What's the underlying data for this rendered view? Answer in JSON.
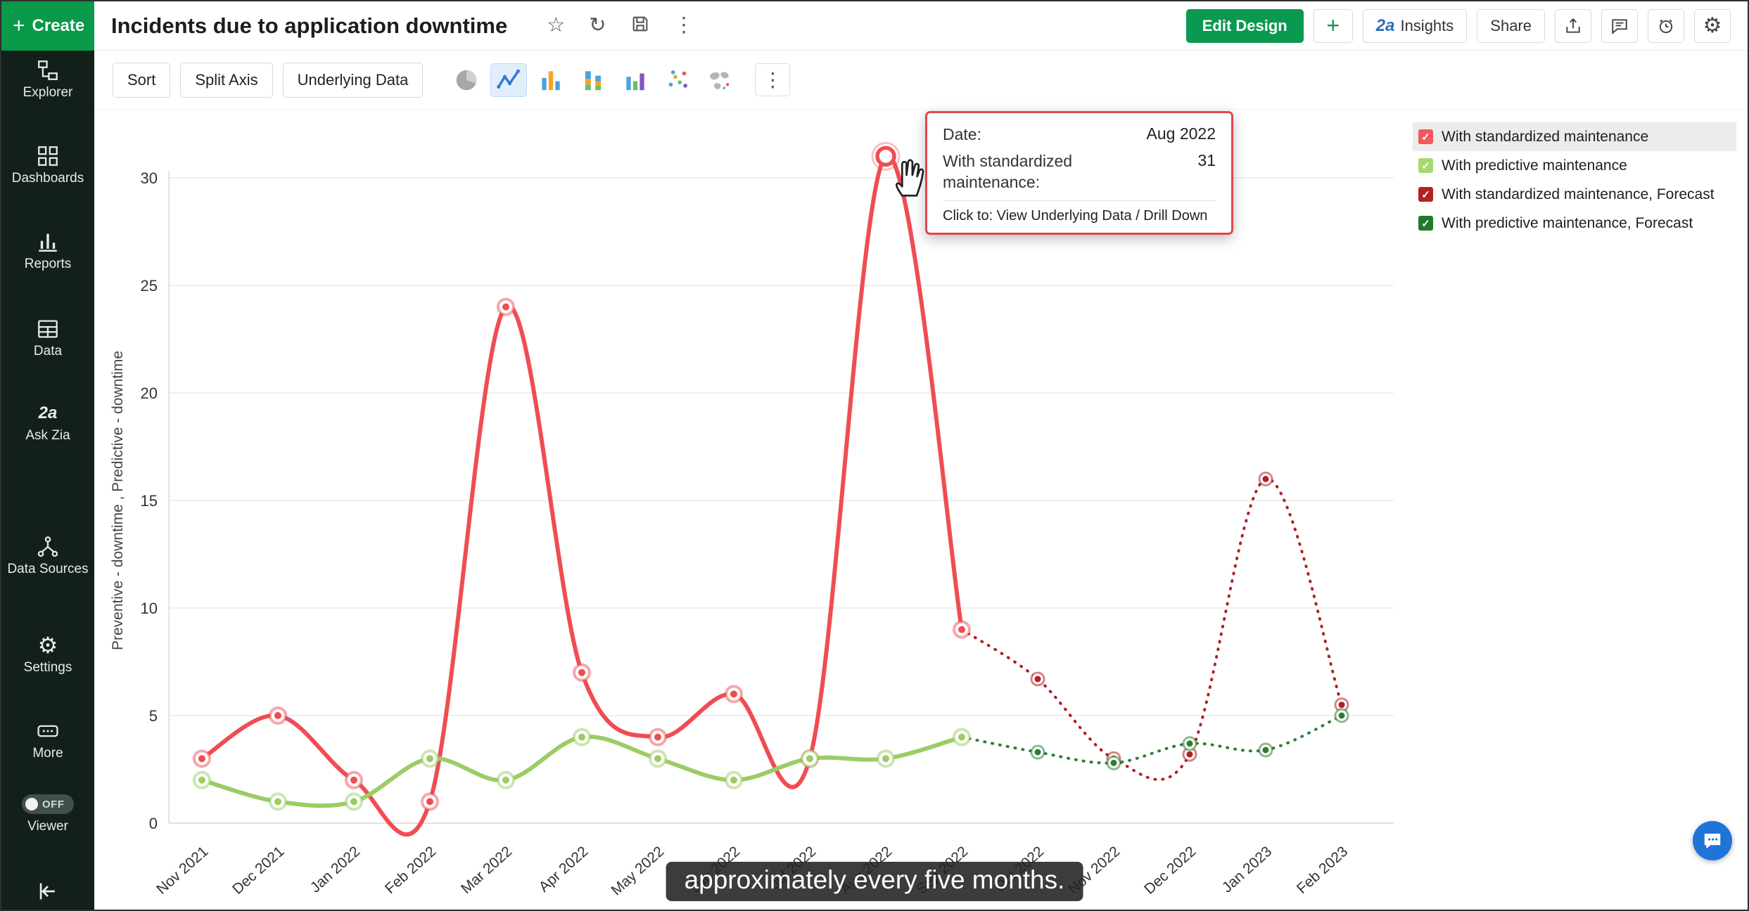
{
  "icons": {
    "plus": "+",
    "star": "☆",
    "refresh": "↻",
    "kebab": "⋮",
    "gear": "⚙",
    "check": "✓",
    "zia": "2a"
  },
  "sidebar": {
    "create_label": "Create",
    "items": [
      {
        "label": "Explorer"
      },
      {
        "label": "Dashboards"
      },
      {
        "label": "Reports"
      },
      {
        "label": "Data"
      },
      {
        "label": "Ask Zia"
      },
      {
        "label": "Data Sources"
      },
      {
        "label": "Settings"
      },
      {
        "label": "More"
      }
    ],
    "viewer": {
      "label": "Viewer",
      "toggle": "OFF"
    }
  },
  "header": {
    "title": "Incidents due to application downtime",
    "edit_design_label": "Edit Design",
    "insights_label": "Insights",
    "share_label": "Share"
  },
  "toolbar": {
    "sort_label": "Sort",
    "split_axis_label": "Split Axis",
    "underlying_data_label": "Underlying Data"
  },
  "chart_data": {
    "type": "line",
    "title": "Incidents due to application downtime",
    "ylabel": "Preventive - downtime , Predictive - downtime",
    "ylim": [
      0,
      30
    ],
    "yticks": [
      0,
      5,
      10,
      15,
      20,
      25,
      30
    ],
    "grid": true,
    "legend_position": "top-right",
    "categories": [
      "Nov 2021",
      "Dec 2021",
      "Jan 2022",
      "Feb 2022",
      "Mar 2022",
      "Apr 2022",
      "May 2022",
      "Jun 2022",
      "Jul 2022",
      "Aug 2022",
      "Sep 2022",
      "Oct 2022",
      "Nov 2022",
      "Dec 2022",
      "Jan 2023",
      "Feb 2023"
    ],
    "series": [
      {
        "name": "With standardized maintenance",
        "color": "#ef4d52",
        "style": "solid",
        "values": [
          3,
          5,
          2,
          1,
          24,
          7,
          4,
          6,
          3,
          31,
          9,
          null,
          null,
          null,
          null,
          null
        ]
      },
      {
        "name": "With predictive maintenance",
        "color": "#9ccc65",
        "style": "solid",
        "values": [
          2,
          1,
          1,
          3,
          2,
          4,
          3,
          2,
          3,
          3,
          4,
          null,
          null,
          null,
          null,
          null
        ]
      },
      {
        "name": "With standardized maintenance, Forecast",
        "color": "#b21f24",
        "style": "dashed",
        "values": [
          null,
          null,
          null,
          null,
          null,
          null,
          null,
          null,
          null,
          null,
          9,
          6.7,
          3,
          3.2,
          16,
          5.5
        ]
      },
      {
        "name": "With predictive maintenance, Forecast",
        "color": "#2e7d32",
        "style": "dashed",
        "values": [
          null,
          null,
          null,
          null,
          null,
          null,
          null,
          null,
          null,
          null,
          4,
          3.3,
          2.8,
          3.7,
          3.4,
          5
        ]
      }
    ],
    "highlight": {
      "category": "Aug 2022",
      "series": "With standardized maintenance",
      "value": 31
    }
  },
  "legend": {
    "items": [
      {
        "label": "With standardized maintenance",
        "color": "#f1595f",
        "selected": true
      },
      {
        "label": "With predictive maintenance",
        "color": "#a5d96d",
        "selected": false
      },
      {
        "label": "With standardized maintenance, Forecast",
        "color": "#b22222",
        "selected": false
      },
      {
        "label": "With predictive maintenance, Forecast",
        "color": "#217a2b",
        "selected": false
      }
    ]
  },
  "tooltip": {
    "date_label": "Date:",
    "date_value": "Aug 2022",
    "series_label": "With standardized maintenance:",
    "series_value": "31",
    "footer": "Click to: View Underlying Data / Drill Down"
  },
  "caption": "approximately every five months."
}
